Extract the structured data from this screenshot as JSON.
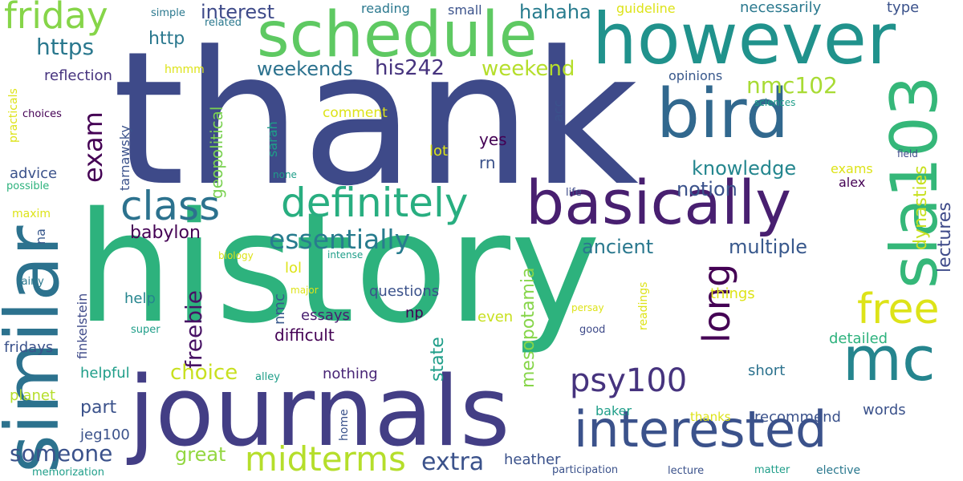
{
  "words": [
    {
      "text": "thank",
      "color": "#3e4a89"
    },
    {
      "text": "history",
      "color": "#2db27d"
    },
    {
      "text": "journals",
      "color": "#433e85"
    },
    {
      "text": "similar",
      "color": "#2c728e"
    },
    {
      "text": "however",
      "color": "#20928c"
    },
    {
      "text": "schedule",
      "color": "#5ec962"
    },
    {
      "text": "bird",
      "color": "#31688e"
    },
    {
      "text": "basically",
      "color": "#481f70"
    },
    {
      "text": "interested",
      "color": "#3b528b"
    },
    {
      "text": "mc",
      "color": "#25858e"
    },
    {
      "text": "sla103",
      "color": "#35b779"
    },
    {
      "text": "definitely",
      "color": "#28ae80"
    },
    {
      "text": "class",
      "color": "#2c728e"
    },
    {
      "text": "friday",
      "color": "#86d549"
    },
    {
      "text": "free",
      "color": "#dde318"
    },
    {
      "text": "long",
      "color": "#440154"
    },
    {
      "text": "midterms",
      "color": "#b5de2b"
    },
    {
      "text": "psy100",
      "color": "#46337e"
    },
    {
      "text": "essentially",
      "color": "#287c8e"
    },
    {
      "text": "exam",
      "color": "#440154"
    },
    {
      "text": "freebie",
      "color": "#471164"
    },
    {
      "text": "extra",
      "color": "#3b528b"
    },
    {
      "text": "someone",
      "color": "#3b528b"
    },
    {
      "text": "choice",
      "color": "#c8e020"
    },
    {
      "text": "https",
      "color": "#2a788e"
    },
    {
      "text": "nmc102",
      "color": "#a8db34"
    },
    {
      "text": "weekends",
      "color": "#2c728e"
    },
    {
      "text": "his242",
      "color": "#46337e"
    },
    {
      "text": "weekend",
      "color": "#b5de2b"
    },
    {
      "text": "interest",
      "color": "#3e4a89"
    },
    {
      "text": "hahaha",
      "color": "#287c8e"
    },
    {
      "text": "knowledge",
      "color": "#24868e"
    },
    {
      "text": "notion",
      "color": "#3b528b"
    },
    {
      "text": "multiple",
      "color": "#38588c"
    },
    {
      "text": "ancient",
      "color": "#2a788e"
    },
    {
      "text": "babylon",
      "color": "#440154"
    },
    {
      "text": "lectures",
      "color": "#3e4a89"
    },
    {
      "text": "dynasties",
      "color": "#c8e020"
    },
    {
      "text": "geopolitical",
      "color": "#7ad151"
    },
    {
      "text": "mesopotamia",
      "color": "#86d549"
    },
    {
      "text": "state",
      "color": "#1f9e89"
    },
    {
      "text": "great",
      "color": "#93d741"
    },
    {
      "text": "part",
      "color": "#3b528b"
    },
    {
      "text": "http",
      "color": "#2a788e"
    },
    {
      "text": "reflection",
      "color": "#46337e"
    },
    {
      "text": "advice",
      "color": "#3b528b"
    },
    {
      "text": "fridays",
      "color": "#3b528b"
    },
    {
      "text": "helpful",
      "color": "#1f9e89"
    },
    {
      "text": "jeg100",
      "color": "#3b528b"
    },
    {
      "text": "planet",
      "color": "#b5de2b"
    },
    {
      "text": "tarnawsky",
      "color": "#3b528b"
    },
    {
      "text": "finkelstein",
      "color": "#3e4a89"
    },
    {
      "text": "questions",
      "color": "#3b528b"
    },
    {
      "text": "difficult",
      "color": "#440154"
    },
    {
      "text": "essays",
      "color": "#481f70"
    },
    {
      "text": "nothing",
      "color": "#482576"
    },
    {
      "text": "recommend",
      "color": "#3b528b"
    },
    {
      "text": "things",
      "color": "#dde318"
    },
    {
      "text": "detailed",
      "color": "#2db27d"
    },
    {
      "text": "short",
      "color": "#2c728e"
    },
    {
      "text": "words",
      "color": "#3b528b"
    },
    {
      "text": "baker",
      "color": "#1f9e89"
    },
    {
      "text": "heather",
      "color": "#3b528b"
    },
    {
      "text": "help",
      "color": "#25858e"
    },
    {
      "text": "comment",
      "color": "#dde318"
    },
    {
      "text": "opinions",
      "color": "#38588c"
    },
    {
      "text": "lol",
      "color": "#dde318"
    },
    {
      "text": "yes",
      "color": "#440154"
    },
    {
      "text": "rn",
      "color": "#3b528b"
    },
    {
      "text": "lot",
      "color": "#dde318"
    },
    {
      "text": "np",
      "color": "#440154"
    },
    {
      "text": "even",
      "color": "#c8e020"
    },
    {
      "text": "exams",
      "color": "#dde318"
    },
    {
      "text": "alex",
      "color": "#440154"
    },
    {
      "text": "nmc",
      "color": "#38588c"
    },
    {
      "text": "na",
      "color": "#38588c"
    },
    {
      "text": "acc",
      "color": "#3b528b"
    },
    {
      "text": "sarah",
      "color": "#1f9e89"
    },
    {
      "text": "necessarily",
      "color": "#2a788e"
    },
    {
      "text": "type",
      "color": "#3b528b"
    },
    {
      "text": "reading",
      "color": "#2a788e"
    },
    {
      "text": "small",
      "color": "#3b528b"
    },
    {
      "text": "guideline",
      "color": "#dde318"
    },
    {
      "text": "hmmm",
      "color": "#dde318"
    },
    {
      "text": "simple",
      "color": "#2a788e"
    },
    {
      "text": "related",
      "color": "#2a788e"
    },
    {
      "text": "choices",
      "color": "#440154"
    },
    {
      "text": "practicals",
      "color": "#dde318"
    },
    {
      "text": "possible",
      "color": "#2db27d"
    },
    {
      "text": "maxim",
      "color": "#dde318"
    },
    {
      "text": "fairly",
      "color": "#2a788e"
    },
    {
      "text": "biology",
      "color": "#dde318"
    },
    {
      "text": "intense",
      "color": "#1f9e89"
    },
    {
      "text": "major",
      "color": "#dde318"
    },
    {
      "text": "super",
      "color": "#1f9e89"
    },
    {
      "text": "none",
      "color": "#1f9e89"
    },
    {
      "text": "sciences",
      "color": "#1f9e89"
    },
    {
      "text": "field",
      "color": "#3e4a89"
    },
    {
      "text": "life",
      "color": "#3e4a89"
    },
    {
      "text": "readings",
      "color": "#dde318"
    },
    {
      "text": "persay",
      "color": "#dde318"
    },
    {
      "text": "good",
      "color": "#3e4a89"
    },
    {
      "text": "thanks",
      "color": "#dde318"
    },
    {
      "text": "alley",
      "color": "#1f9e89"
    },
    {
      "text": "home",
      "color": "#3b528b"
    },
    {
      "text": "memorization",
      "color": "#1f9e89"
    },
    {
      "text": "participation",
      "color": "#3b528b"
    },
    {
      "text": "lecture",
      "color": "#3b528b"
    },
    {
      "text": "matter",
      "color": "#1f9e89"
    },
    {
      "text": "elective",
      "color": "#2a788e"
    }
  ]
}
